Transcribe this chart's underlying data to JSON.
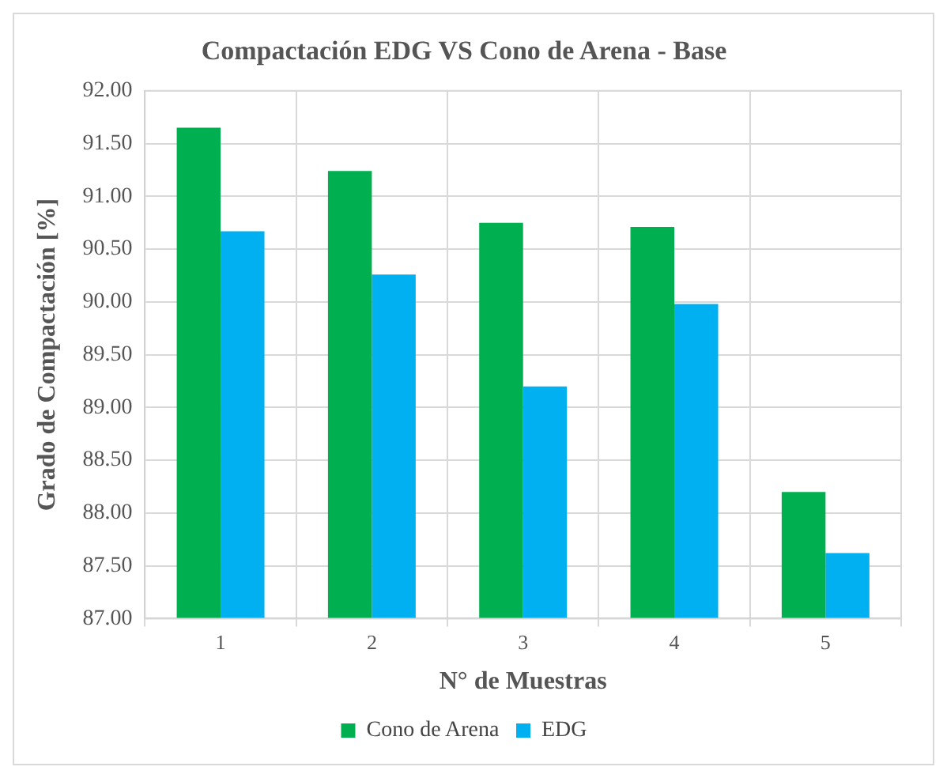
{
  "chart_data": {
    "type": "bar",
    "title": "Compactación EDG VS Cono de Arena - Base",
    "xlabel": "N° de Muestras",
    "ylabel": "Grado de Compactación [%]",
    "categories": [
      "1",
      "2",
      "3",
      "4",
      "5"
    ],
    "series": [
      {
        "name": "Cono de Arena",
        "color": "#00b050",
        "values": [
          91.65,
          91.24,
          90.75,
          90.71,
          88.2
        ]
      },
      {
        "name": "EDG",
        "color": "#00b0f0",
        "values": [
          90.67,
          90.26,
          89.2,
          89.98,
          87.62
        ]
      }
    ],
    "ylim": [
      87,
      92
    ],
    "yticks": [
      {
        "value": 87,
        "label": "87.00"
      },
      {
        "value": 87.5,
        "label": "87.50"
      },
      {
        "value": 88,
        "label": "88.00"
      },
      {
        "value": 88.5,
        "label": "88.50"
      },
      {
        "value": 89,
        "label": "89.00"
      },
      {
        "value": 89.5,
        "label": "89.50"
      },
      {
        "value": 90,
        "label": "90.00"
      },
      {
        "value": 90.5,
        "label": "90.50"
      },
      {
        "value": 91,
        "label": "91.00"
      },
      {
        "value": 91.5,
        "label": "91.50"
      },
      {
        "value": 92,
        "label": "92.00"
      }
    ],
    "grid": true,
    "legend": "bottom"
  }
}
